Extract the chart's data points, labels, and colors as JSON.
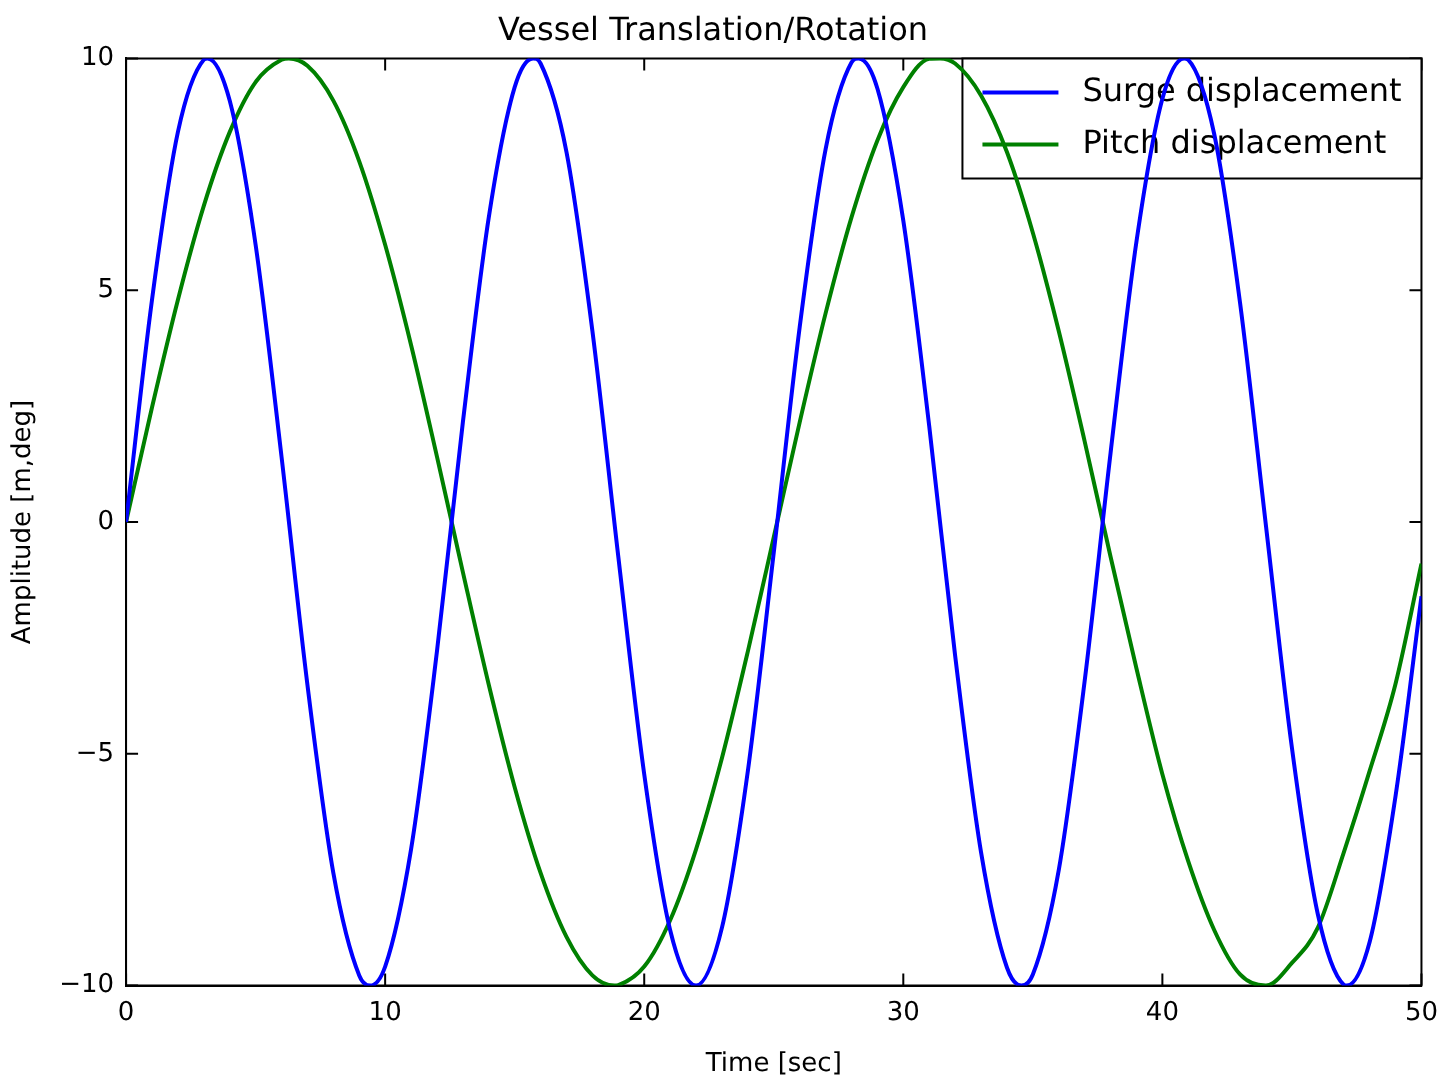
{
  "chart_data": {
    "type": "line",
    "title": "Vessel Translation/Rotation",
    "xlabel": "Time [sec]",
    "ylabel": "Amplitude [m,deg]",
    "xlim": [
      0,
      50
    ],
    "xticks": [
      0,
      10,
      20,
      30,
      40,
      50
    ],
    "ylim": [
      -10,
      10
    ],
    "yticks": [
      {
        "value": -10,
        "label": "−10"
      },
      {
        "value": -5,
        "label": "−5"
      },
      0,
      5,
      10
    ],
    "grid": false,
    "legend": "top right",
    "marker": "none",
    "line_style": "solid",
    "series": [
      {
        "name": "Surge displacement",
        "color": "#0000ff",
        "x": [
          0,
          1,
          2,
          3,
          3.14,
          4,
          5,
          6,
          7,
          8,
          9,
          9.42,
          10,
          11,
          12,
          13,
          14,
          15,
          15.71,
          16,
          17,
          18,
          19,
          20,
          21,
          22,
          23,
          24,
          25,
          26,
          27,
          28,
          28.27,
          29,
          30,
          31,
          32,
          33,
          34,
          34.56,
          35,
          36,
          37,
          38,
          39,
          40,
          40.84,
          41,
          42,
          43,
          44,
          45,
          46,
          47,
          47.12,
          48,
          49,
          50
        ],
        "values": [
          0,
          4.79,
          8.41,
          9.97,
          10,
          9.09,
          5.98,
          1.41,
          -3.51,
          -7.57,
          -9.78,
          -10,
          -9.59,
          -7.06,
          -2.79,
          2.15,
          6.57,
          9.38,
          10,
          9.89,
          7.98,
          4.12,
          -0.75,
          -5.44,
          -8.8,
          -10,
          -8.75,
          -5.37,
          -0.66,
          4.2,
          8.04,
          9.91,
          10,
          9.35,
          6.5,
          2.07,
          -2.88,
          -7.12,
          -9.61,
          -10,
          -9.76,
          -7.51,
          -3.43,
          1.49,
          6.05,
          9.13,
          10,
          9.97,
          8.37,
          4.72,
          -0.09,
          -4.87,
          -8.46,
          -9.98,
          -10,
          -9.06,
          -5.91,
          -1.6
        ]
      },
      {
        "name": "Pitch displacement",
        "color": "#008000",
        "x": [
          0,
          1,
          2,
          3,
          4,
          5,
          6,
          6.28,
          7,
          8,
          9,
          10,
          11,
          12,
          13,
          14,
          15,
          16,
          17,
          18,
          18.85,
          19,
          20,
          21,
          22,
          23,
          24,
          25,
          26,
          27,
          28,
          29,
          30,
          31,
          31.42,
          32,
          33,
          34,
          35,
          36,
          37,
          38,
          39,
          40,
          41,
          42,
          43,
          43.98,
          44,
          45,
          46,
          47,
          48,
          49,
          50
        ],
        "values": [
          0,
          2.47,
          4.79,
          6.82,
          8.41,
          9.49,
          9.97,
          10,
          9.84,
          9.09,
          7.78,
          5.98,
          3.82,
          1.41,
          -1.08,
          -3.51,
          -5.72,
          -7.57,
          -8.95,
          -9.78,
          -10,
          -9.99,
          -9.59,
          -8.59,
          -7.06,
          -5.09,
          -2.79,
          -0.33,
          2.15,
          4.5,
          6.57,
          8.23,
          9.38,
          9.99,
          10,
          9.89,
          9.2,
          7.98,
          6.24,
          4.12,
          1.74,
          -0.75,
          -3.16,
          -5.44,
          -7.32,
          -8.8,
          -9.76,
          -10,
          -10,
          -9.51,
          -8.75,
          -7.13,
          -5.37,
          -3.49,
          -0.9
        ]
      }
    ]
  }
}
